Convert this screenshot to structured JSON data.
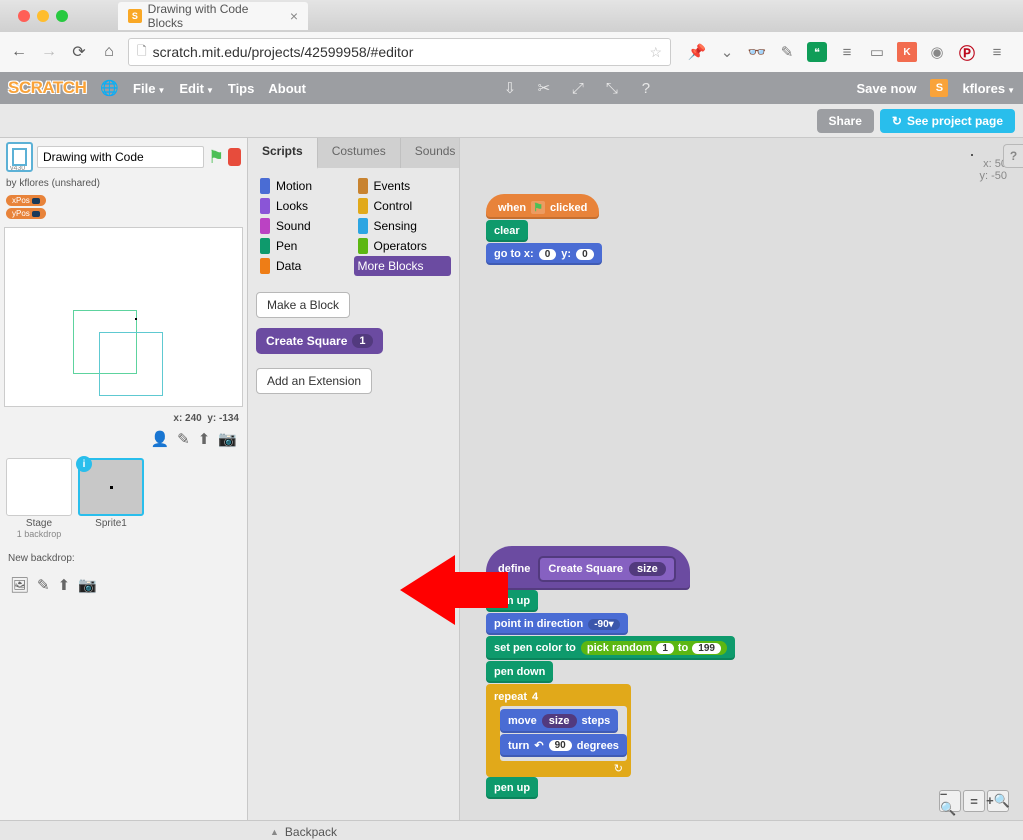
{
  "browser": {
    "tab_title": "Drawing with Code Blocks",
    "url": "scratch.mit.edu/projects/42599958/#editor"
  },
  "scratch_menu": {
    "logo": "SCRATCH",
    "items": [
      "File",
      "Edit",
      "Tips",
      "About"
    ],
    "save": "Save now",
    "username": "kflores"
  },
  "action": {
    "share": "Share",
    "project_page": "See project page"
  },
  "project": {
    "title": "Drawing with Code",
    "version": "v430",
    "author_line": "by kflores (unshared)",
    "xpos": "xPos",
    "ypos": "yPos",
    "stage_x": "x: 240",
    "stage_y": "y: -134",
    "stage_label": "Stage",
    "stage_sub": "1 backdrop",
    "sprite1": "Sprite1",
    "new_backdrop": "New backdrop:"
  },
  "tabs": {
    "scripts": "Scripts",
    "costumes": "Costumes",
    "sounds": "Sounds"
  },
  "categories": [
    {
      "name": "Motion",
      "color": "#4a6cd4"
    },
    {
      "name": "Events",
      "color": "#c88330"
    },
    {
      "name": "Looks",
      "color": "#8a55d7"
    },
    {
      "name": "Control",
      "color": "#e1a91a"
    },
    {
      "name": "Sound",
      "color": "#bb42c3"
    },
    {
      "name": "Sensing",
      "color": "#2ca5e2"
    },
    {
      "name": "Pen",
      "color": "#0e9a6c"
    },
    {
      "name": "Operators",
      "color": "#5cb712"
    },
    {
      "name": "Data",
      "color": "#ee7d16"
    },
    {
      "name": "More Blocks",
      "color": "#6b4ba1"
    }
  ],
  "palette": {
    "make_block": "Make a Block",
    "custom_block": "Create Square",
    "custom_arg": "1",
    "add_ext": "Add an Extension"
  },
  "script_coords": {
    "x": "x: 50",
    "y": "y: -50"
  },
  "stack1": {
    "when_clicked": "when",
    "clicked_word": "clicked",
    "clear": "clear",
    "goto": "go to x:",
    "gx": "0",
    "gy_label": "y:",
    "gy": "0"
  },
  "stack2": {
    "define": "define",
    "proto_name": "Create Square",
    "proto_arg": "size",
    "pen_up": "pen up",
    "point": "point in direction",
    "dir": "-90▾",
    "setpen": "set pen color to",
    "pick": "pick random",
    "p1": "1",
    "pto": "to",
    "p2": "199",
    "pen_down": "pen down",
    "repeat": "repeat",
    "times": "4",
    "move": "move",
    "move_arg": "size",
    "steps": "steps",
    "turn": "turn",
    "deg": "90",
    "degrees_word": "degrees",
    "pen_up2": "pen up"
  },
  "backpack": "Backpack",
  "colors": {
    "motion": "#4a6cd4",
    "looks": "#8a55d7",
    "sound": "#bb42c3",
    "pen": "#0e9a6c",
    "data": "#ee7d16",
    "events": "#c88330",
    "control": "#e1a91a",
    "sensing": "#2ca5e2",
    "operators": "#5cb712",
    "more": "#6b4ba1"
  }
}
